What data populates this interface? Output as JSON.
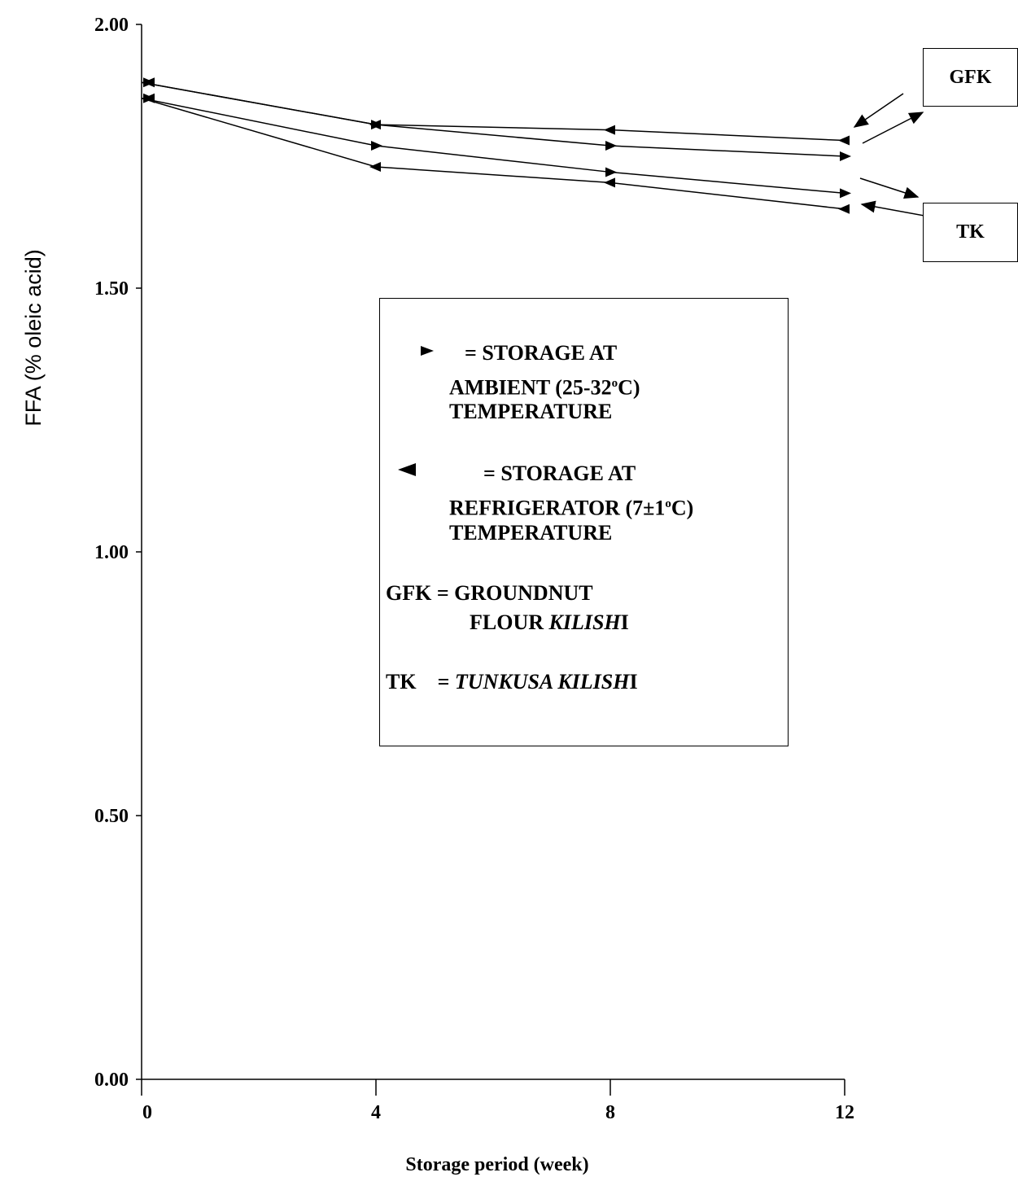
{
  "chart_data": {
    "type": "line",
    "xlabel": "Storage period (week)",
    "ylabel": "FFA (% oleic acid)",
    "x": [
      0,
      4,
      8,
      12
    ],
    "x_tick_labels": [
      "0",
      "4",
      "8",
      "12"
    ],
    "y_tick_labels": [
      "0.00",
      "0.50",
      "1.00",
      "1.50",
      "2.00"
    ],
    "y_ticks": [
      0,
      0.5,
      1.0,
      1.5,
      2.0
    ],
    "ylim": [
      0,
      2.0
    ],
    "xlim": [
      0,
      12
    ],
    "grid": false,
    "series": [
      {
        "group": "GFK",
        "marker": "right-triangle",
        "values": [
          1.89,
          1.81,
          1.77,
          1.75
        ]
      },
      {
        "group": "GFK",
        "marker": "left-triangle",
        "values": [
          1.89,
          1.81,
          1.8,
          1.78
        ]
      },
      {
        "group": "TK",
        "marker": "right-triangle",
        "values": [
          1.86,
          1.77,
          1.72,
          1.68
        ]
      },
      {
        "group": "TK",
        "marker": "left-triangle",
        "values": [
          1.86,
          1.73,
          1.7,
          1.65
        ]
      }
    ],
    "series_tags": [
      "GFK",
      "TK"
    ],
    "legend": {
      "ambient": {
        "line1": "= STORAGE AT",
        "line2_pre": "AMBIENT (25-32",
        "line2_sup": "o",
        "line2_post": "C)",
        "line3": "TEMPERATURE"
      },
      "refrigerator": {
        "line1": "= STORAGE AT",
        "line2_pre": "REFRIGERATOR (7±1",
        "line2_sup": "o",
        "line2_post": "C)",
        "line3": "TEMPERATURE"
      },
      "gfk": {
        "line1": "GFK = GROUNDNUT",
        "line2_plain": "FLOUR ",
        "line2_italic": "KILISH",
        "line2_end": "I"
      },
      "tk": {
        "prefix": "TK",
        "eq": "= ",
        "italic": "TUNKUSA KILISH",
        "end": "I"
      }
    }
  }
}
